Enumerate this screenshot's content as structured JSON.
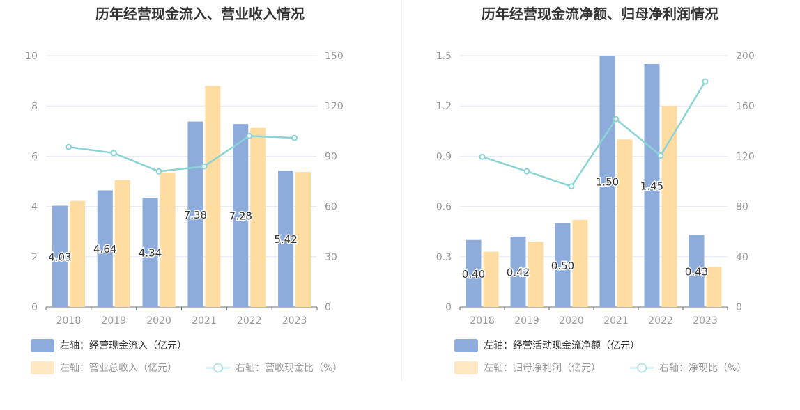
{
  "charts": [
    {
      "title": "历年经营现金流入、营业收入情况",
      "legend": [
        {
          "label": "左轴：经营现金流入（亿元）",
          "color": "#8eacdb",
          "kind": "bar"
        },
        {
          "label": "左轴：营业总收入（亿元）",
          "color": "#ffdca1",
          "kind": "bar"
        },
        {
          "label": "右轴：营收现金比（%）",
          "color": "#8ad4d6",
          "kind": "line"
        }
      ]
    },
    {
      "title": "历年经营现金流净额、归母净利润情况",
      "legend": [
        {
          "label": "左轴：经营活动现金流净额（亿元）",
          "color": "#8eacdb",
          "kind": "bar"
        },
        {
          "label": "左轴：归母净利润（亿元）",
          "color": "#ffdca1",
          "kind": "bar"
        },
        {
          "label": "右轴：净现比（%）",
          "color": "#8ad4d6",
          "kind": "line"
        }
      ]
    }
  ],
  "chart_data": [
    {
      "type": "bar",
      "title": "历年经营现金流入、营业收入情况",
      "categories": [
        "2018",
        "2019",
        "2020",
        "2021",
        "2022",
        "2023"
      ],
      "left_axis": {
        "ylim": [
          0,
          10
        ],
        "ticks": [
          "0",
          "2",
          "4",
          "6",
          "8",
          "10"
        ]
      },
      "right_axis": {
        "ylim": [
          0,
          150
        ],
        "ticks": [
          "0",
          "30",
          "60",
          "90",
          "120",
          "150"
        ]
      },
      "series": [
        {
          "name": "左轴：经营现金流入（亿元）",
          "axis": "left",
          "kind": "bar",
          "values": [
            4.03,
            4.64,
            4.34,
            7.38,
            7.28,
            5.42
          ],
          "labels": [
            "4.03",
            "4.64",
            "4.34",
            "7.38",
            "7.28",
            "5.42"
          ]
        },
        {
          "name": "左轴：营业总收入（亿元）",
          "axis": "left",
          "kind": "bar",
          "values": [
            4.22,
            5.05,
            5.35,
            8.8,
            7.13,
            5.37
          ]
        },
        {
          "name": "右轴：营收现金比（%）",
          "axis": "right",
          "kind": "line",
          "values": [
            95.5,
            91.9,
            80.9,
            83.9,
            102.1,
            100.9
          ]
        }
      ],
      "grid": true,
      "legend_position": "bottom-left"
    },
    {
      "type": "bar",
      "title": "历年经营现金流净额、归母净利润情况",
      "categories": [
        "2018",
        "2019",
        "2020",
        "2021",
        "2022",
        "2023"
      ],
      "left_axis": {
        "ylim": [
          0,
          1.5
        ],
        "ticks": [
          "0",
          "0.3",
          "0.6",
          "0.9",
          "1.2",
          "1.5"
        ]
      },
      "right_axis": {
        "ylim": [
          0,
          200
        ],
        "ticks": [
          "0",
          "40",
          "80",
          "120",
          "160",
          "200"
        ]
      },
      "series": [
        {
          "name": "左轴：经营活动现金流净额（亿元）",
          "axis": "left",
          "kind": "bar",
          "values": [
            0.4,
            0.42,
            0.5,
            1.5,
            1.45,
            0.43
          ],
          "labels": [
            "0.40",
            "0.42",
            "0.50",
            "1.50",
            "1.45",
            "0.43"
          ]
        },
        {
          "name": "左轴：归母净利润（亿元）",
          "axis": "left",
          "kind": "bar",
          "values": [
            0.33,
            0.39,
            0.52,
            1.0,
            1.2,
            0.24
          ]
        },
        {
          "name": "右轴：净现比（%）",
          "axis": "right",
          "kind": "line",
          "values": [
            119.5,
            108.0,
            96.0,
            149.5,
            120.5,
            179.5
          ]
        }
      ],
      "grid": true,
      "legend_position": "bottom-left"
    }
  ]
}
